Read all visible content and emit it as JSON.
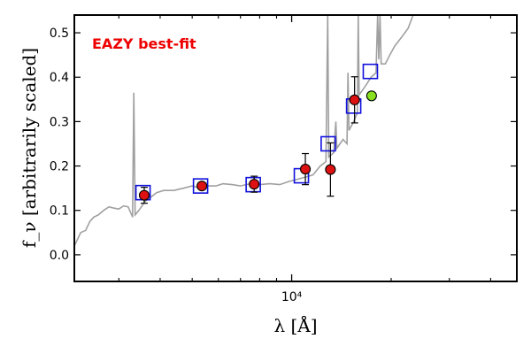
{
  "colors": {
    "model": "#a0a0a0",
    "observed_fill": "#dd1111",
    "model_box": "#1111dd",
    "extra_point": "#88e020",
    "annotation": "#ee0000"
  },
  "chart_data": {
    "type": "scatter",
    "xscale": "log",
    "xlim": [
      2200,
      48000
    ],
    "ylim": [
      -0.06,
      0.54
    ],
    "xlabel": "λ [Å]",
    "ylabel": "f_ν [arbitrarily scaled]",
    "x_ticks": [
      {
        "value": 10000,
        "label": "10⁴"
      }
    ],
    "y_ticks": [
      0.0,
      0.1,
      0.2,
      0.3,
      0.4,
      0.5
    ],
    "y_tick_labels": [
      "0.0",
      "0.1",
      "0.2",
      "0.3",
      "0.4",
      "0.5"
    ],
    "annotation": "EAZY best-fit",
    "grid": false,
    "model_spectrum": {
      "style": "line",
      "points": [
        [
          2200,
          0.02
        ],
        [
          2300,
          0.05
        ],
        [
          2380,
          0.055
        ],
        [
          2450,
          0.075
        ],
        [
          2520,
          0.085
        ],
        [
          2600,
          0.09
        ],
        [
          2700,
          0.1
        ],
        [
          2800,
          0.108
        ],
        [
          2900,
          0.105
        ],
        [
          3000,
          0.103
        ],
        [
          3100,
          0.11
        ],
        [
          3200,
          0.108
        ],
        [
          3300,
          0.085
        ],
        [
          3330,
          0.365
        ],
        [
          3360,
          0.09
        ],
        [
          3450,
          0.1
        ],
        [
          3600,
          0.12
        ],
        [
          3750,
          0.13
        ],
        [
          3900,
          0.14
        ],
        [
          4100,
          0.145
        ],
        [
          4400,
          0.145
        ],
        [
          4700,
          0.15
        ],
        [
          5000,
          0.155
        ],
        [
          5300,
          0.15
        ],
        [
          5600,
          0.155
        ],
        [
          5900,
          0.155
        ],
        [
          6200,
          0.16
        ],
        [
          6600,
          0.158
        ],
        [
          7000,
          0.155
        ],
        [
          7500,
          0.16
        ],
        [
          8000,
          0.158
        ],
        [
          8600,
          0.16
        ],
        [
          9200,
          0.158
        ],
        [
          9800,
          0.165
        ],
        [
          10400,
          0.17
        ],
        [
          11000,
          0.175
        ],
        [
          11600,
          0.18
        ],
        [
          12200,
          0.2
        ],
        [
          12700,
          0.21
        ],
        [
          12850,
          0.54
        ],
        [
          12950,
          0.22
        ],
        [
          13400,
          0.23
        ],
        [
          13600,
          0.3
        ],
        [
          13700,
          0.24
        ],
        [
          14300,
          0.26
        ],
        [
          14700,
          0.25
        ],
        [
          14800,
          0.41
        ],
        [
          14900,
          0.28
        ],
        [
          15400,
          0.3
        ],
        [
          15800,
          0.32
        ],
        [
          15900,
          0.54
        ],
        [
          16000,
          0.36
        ],
        [
          16700,
          0.38
        ],
        [
          17400,
          0.4
        ],
        [
          18000,
          0.41
        ],
        [
          18200,
          0.54
        ],
        [
          18350,
          0.44
        ],
        [
          18500,
          0.54
        ],
        [
          18650,
          0.43
        ],
        [
          19200,
          0.43
        ],
        [
          19800,
          0.45
        ],
        [
          20500,
          0.47
        ],
        [
          21500,
          0.49
        ],
        [
          22500,
          0.51
        ],
        [
          23300,
          0.54
        ]
      ]
    },
    "observed": [
      {
        "x": 3580,
        "y": 0.134,
        "err": 0.018
      },
      {
        "x": 5350,
        "y": 0.155,
        "err": 0.005
      },
      {
        "x": 7700,
        "y": 0.159,
        "err": 0.018
      },
      {
        "x": 11000,
        "y": 0.193,
        "err": 0.035
      },
      {
        "x": 13100,
        "y": 0.192,
        "err": 0.06
      },
      {
        "x": 15500,
        "y": 0.349,
        "err": 0.052
      }
    ],
    "model_photometry": [
      {
        "x": 3550,
        "y": 0.14
      },
      {
        "x": 5300,
        "y": 0.155
      },
      {
        "x": 7650,
        "y": 0.158
      },
      {
        "x": 10700,
        "y": 0.178
      },
      {
        "x": 12900,
        "y": 0.25
      },
      {
        "x": 15400,
        "y": 0.335
      },
      {
        "x": 17300,
        "y": 0.413
      }
    ],
    "extra_points": [
      {
        "x": 17450,
        "y": 0.358
      }
    ]
  }
}
